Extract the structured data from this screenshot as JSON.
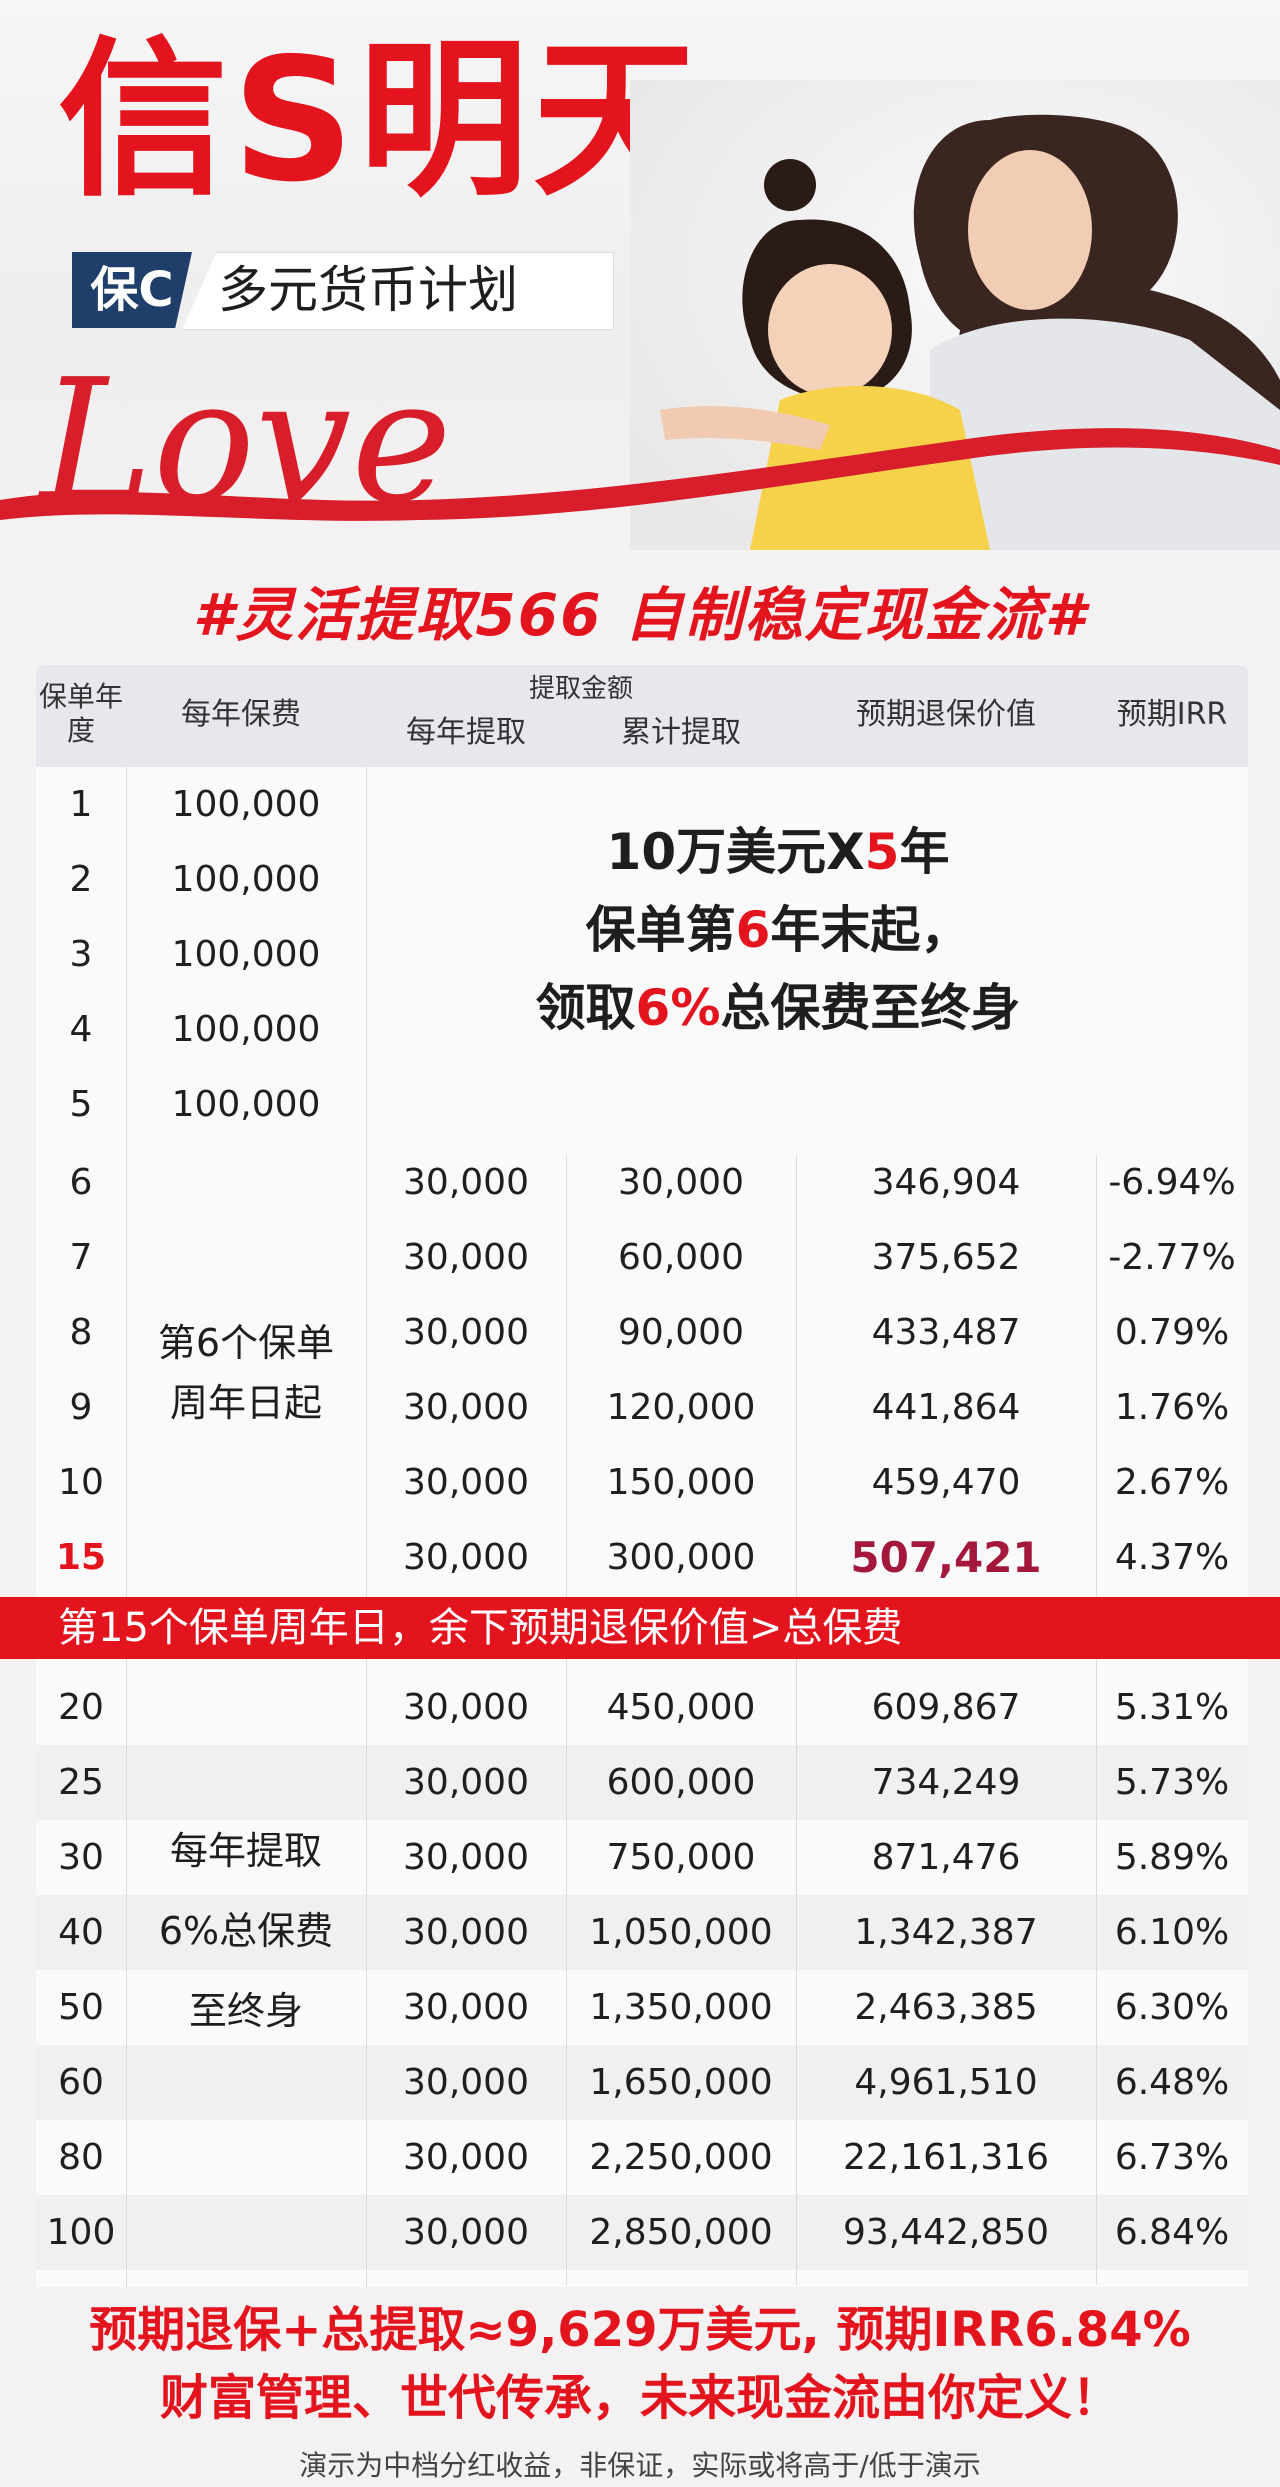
{
  "hero": {
    "title": "信S明天",
    "badge": "保C",
    "subtitle": "多元货币计划",
    "script_word": "Love"
  },
  "tagline": "#灵活提取566 自制稳定现金流#",
  "table": {
    "headers": {
      "year": "保单年度",
      "premium": "每年保费",
      "withdraw_group": "提取金额",
      "annual": "每年提取",
      "cumulative": "累计提取",
      "surrender": "预期退保价值",
      "irr": "预期IRR"
    },
    "top_rows": [
      {
        "year": "1",
        "premium": "100,000"
      },
      {
        "year": "2",
        "premium": "100,000"
      },
      {
        "year": "3",
        "premium": "100,000"
      },
      {
        "year": "4",
        "premium": "100,000"
      },
      {
        "year": "5",
        "premium": "100,000"
      }
    ],
    "center_note": {
      "line1_pre": "10万美元X",
      "line1_num": "5",
      "line1_post": "年",
      "line2_pre": "保单第",
      "line2_num": "6",
      "line2_post": "年末起，",
      "line3_pre": "领取",
      "line3_num": "6%",
      "line3_post": "总保费至终身"
    },
    "mid_rows": [
      {
        "year": "6",
        "annual": "30,000",
        "cumulative": "30,000",
        "surrender": "346,904",
        "irr": "-6.94%"
      },
      {
        "year": "7",
        "annual": "30,000",
        "cumulative": "60,000",
        "surrender": "375,652",
        "irr": "-2.77%"
      },
      {
        "year": "8",
        "annual": "30,000",
        "cumulative": "90,000",
        "surrender": "433,487",
        "irr": "0.79%"
      },
      {
        "year": "9",
        "annual": "30,000",
        "cumulative": "120,000",
        "surrender": "441,864",
        "irr": "1.76%"
      },
      {
        "year": "10",
        "annual": "30,000",
        "cumulative": "150,000",
        "surrender": "459,470",
        "irr": "2.67%"
      },
      {
        "year": "15",
        "annual": "30,000",
        "cumulative": "300,000",
        "surrender": "507,421",
        "irr": "4.37%"
      }
    ],
    "mid_premium_note": [
      "第6个保单",
      "周年日起"
    ],
    "banner": "第15个保单周年日，余下预期退保价值>总保费",
    "bottom_rows": [
      {
        "year": "20",
        "annual": "30,000",
        "cumulative": "450,000",
        "surrender": "609,867",
        "irr": "5.31%"
      },
      {
        "year": "25",
        "annual": "30,000",
        "cumulative": "600,000",
        "surrender": "734,249",
        "irr": "5.73%"
      },
      {
        "year": "30",
        "annual": "30,000",
        "cumulative": "750,000",
        "surrender": "871,476",
        "irr": "5.89%"
      },
      {
        "year": "40",
        "annual": "30,000",
        "cumulative": "1,050,000",
        "surrender": "1,342,387",
        "irr": "6.10%"
      },
      {
        "year": "50",
        "annual": "30,000",
        "cumulative": "1,350,000",
        "surrender": "2,463,385",
        "irr": "6.30%"
      },
      {
        "year": "60",
        "annual": "30,000",
        "cumulative": "1,650,000",
        "surrender": "4,961,510",
        "irr": "6.48%"
      },
      {
        "year": "80",
        "annual": "30,000",
        "cumulative": "2,250,000",
        "surrender": "22,161,316",
        "irr": "6.73%"
      },
      {
        "year": "100",
        "annual": "30,000",
        "cumulative": "2,850,000",
        "surrender": "93,442,850",
        "irr": "6.84%"
      }
    ],
    "bottom_premium_note": [
      "每年提取",
      "6%总保费",
      "至终身"
    ]
  },
  "footer": {
    "line1": "预期退保+总提取≈9,629万美元, 预期IRR6.84%",
    "line2": "财富管理、世代传承，未来现金流由你定义！",
    "disclaimer": "演示为中档分红收益，非保证，实际或将高于/低于演示"
  },
  "colors": {
    "brand_red": "#e3141e",
    "navy": "#1f3e6a",
    "highlight": "#a3183c"
  }
}
